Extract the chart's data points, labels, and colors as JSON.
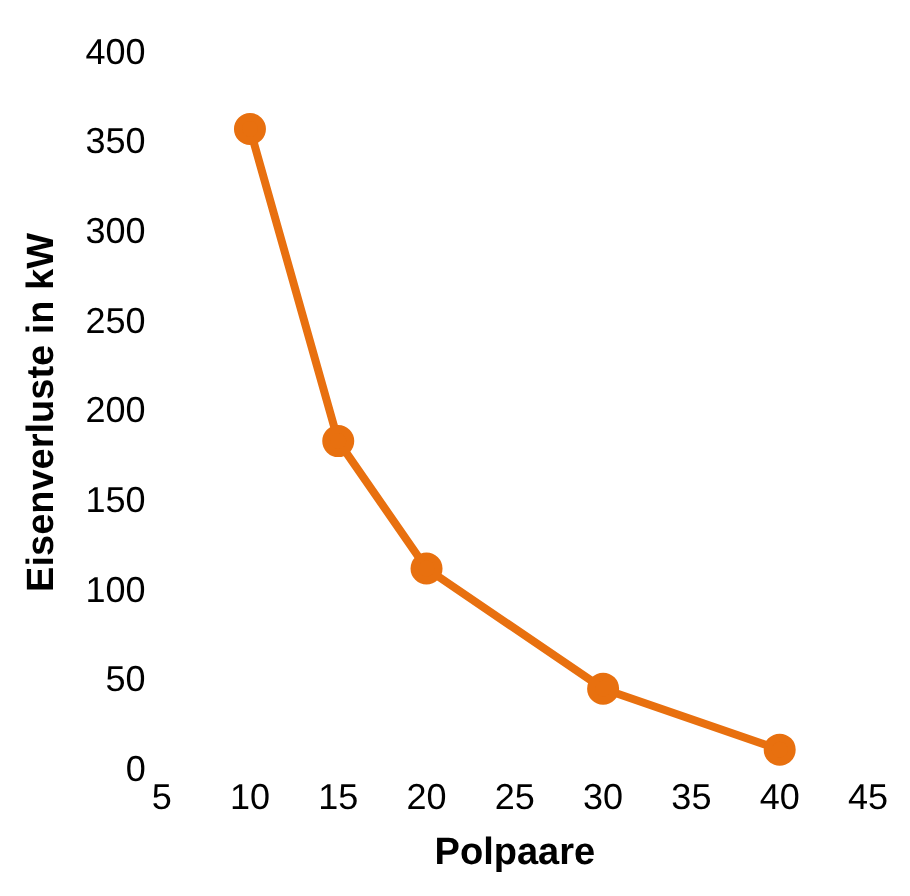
{
  "chart_data": {
    "type": "line",
    "xlabel": "Polpaare",
    "ylabel": "Eisenverluste in kW",
    "x": [
      10,
      15,
      20,
      30,
      40
    ],
    "series": [
      {
        "color": "#e8700f",
        "values": [
          358,
          184,
          113,
          46,
          12
        ]
      }
    ],
    "xlim": [
      5,
      45
    ],
    "xticks": [
      5,
      10,
      15,
      20,
      25,
      30,
      35,
      40,
      45
    ],
    "ylim": [
      0,
      400
    ],
    "yticks": [
      0,
      50,
      100,
      150,
      200,
      250,
      300,
      350,
      400
    ],
    "grid": false,
    "legend": false,
    "marker": "circle",
    "line_style": "solid"
  }
}
